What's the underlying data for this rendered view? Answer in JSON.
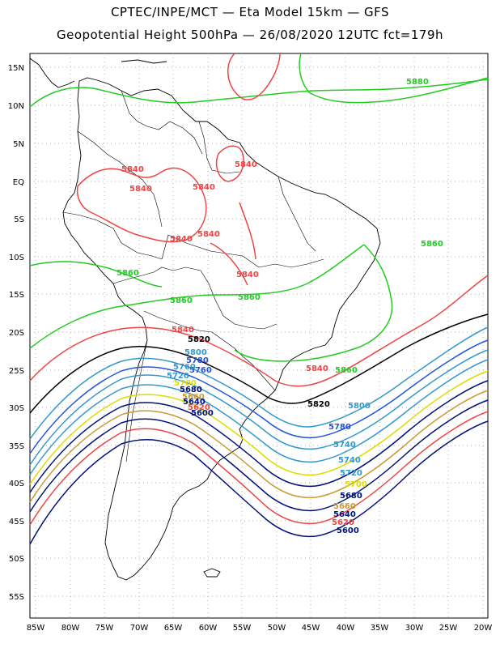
{
  "title_line1": "CPTEC/INPE/MCT —  Eta Model 15km — GFS",
  "title_line2": "Geopotential Height 500hPa — 26/08/2020 12UTC fct=179h",
  "lat_labels": [
    "15N",
    "10N",
    "5N",
    "EQ",
    "5S",
    "10S",
    "15S",
    "20S",
    "25S",
    "30S",
    "35S",
    "40S",
    "45S",
    "50S",
    "55S"
  ],
  "lon_labels": [
    "85W",
    "80W",
    "75W",
    "70W",
    "65W",
    "60W",
    "55W",
    "50W",
    "45W",
    "40W",
    "35W",
    "30W",
    "25W",
    "20W"
  ],
  "contour_labels": [
    {
      "text": "5880",
      "color": "#22cc22"
    },
    {
      "text": "5860",
      "color": "#22cc22"
    },
    {
      "text": "5860",
      "color": "#22cc22"
    },
    {
      "text": "5860",
      "color": "#22cc22"
    },
    {
      "text": "5860",
      "color": "#22cc22"
    },
    {
      "text": "5860",
      "color": "#22cc22"
    },
    {
      "text": "5840",
      "color": "#ee4444"
    },
    {
      "text": "5840",
      "color": "#ee4444"
    },
    {
      "text": "5840",
      "color": "#ee4444"
    },
    {
      "text": "5840",
      "color": "#ee4444"
    },
    {
      "text": "5840",
      "color": "#ee4444"
    },
    {
      "text": "5840",
      "color": "#ee4444"
    },
    {
      "text": "5840",
      "color": "#ee4444"
    },
    {
      "text": "5840",
      "color": "#ee4444"
    },
    {
      "text": "5840",
      "color": "#ee4444"
    },
    {
      "text": "5820",
      "color": "#000000"
    },
    {
      "text": "5820",
      "color": "#000000"
    },
    {
      "text": "5800",
      "color": "#3399cc"
    },
    {
      "text": "5800",
      "color": "#3399cc"
    },
    {
      "text": "5780",
      "color": "#2255dd"
    },
    {
      "text": "5780",
      "color": "#2255dd"
    },
    {
      "text": "5760",
      "color": "#2255dd"
    },
    {
      "text": "5740",
      "color": "#3399cc"
    },
    {
      "text": "5760",
      "color": "#3399cc"
    },
    {
      "text": "5740",
      "color": "#3399cc"
    },
    {
      "text": "5720",
      "color": "#3399cc"
    },
    {
      "text": "5720",
      "color": "#3399cc"
    },
    {
      "text": "5700",
      "color": "#dddd00"
    },
    {
      "text": "5700",
      "color": "#dddd00"
    },
    {
      "text": "5680",
      "color": "#001177"
    },
    {
      "text": "5680",
      "color": "#001177"
    },
    {
      "text": "5660",
      "color": "#cc9933"
    },
    {
      "text": "5660",
      "color": "#cc9933"
    },
    {
      "text": "5640",
      "color": "#001177"
    },
    {
      "text": "5640",
      "color": "#001177"
    },
    {
      "text": "5620",
      "color": "#ee4444"
    },
    {
      "text": "5620",
      "color": "#ee4444"
    },
    {
      "text": "5600",
      "color": "#001177"
    },
    {
      "text": "5600",
      "color": "#001177"
    }
  ]
}
